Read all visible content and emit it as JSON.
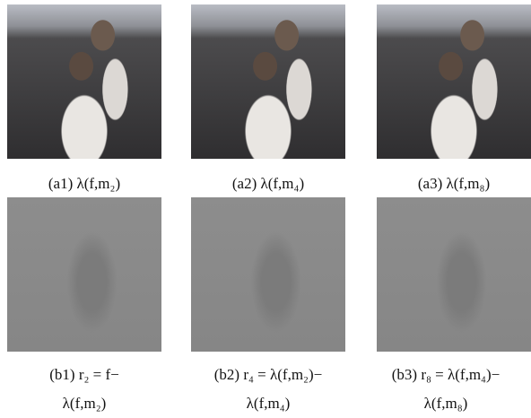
{
  "figure": {
    "rows": [
      {
        "panels": [
          {
            "caption": [
              "(a1) λ(f,m₂)"
            ]
          },
          {
            "caption": [
              "(a2) λ(f,m₄)"
            ]
          },
          {
            "caption": [
              "(a3) λ(f,m₈)"
            ]
          }
        ]
      },
      {
        "panels": [
          {
            "caption": [
              "(b1) r₂ = f−",
              "λ(f,m₂)"
            ]
          },
          {
            "caption": [
              "(b2) r₄ = λ(f,m₂)−",
              "λ(f,m₄)"
            ]
          },
          {
            "caption": [
              "(b3) r₈ = λ(f,m₄)−",
              "λ(f,m₈)"
            ]
          }
        ]
      }
    ]
  }
}
